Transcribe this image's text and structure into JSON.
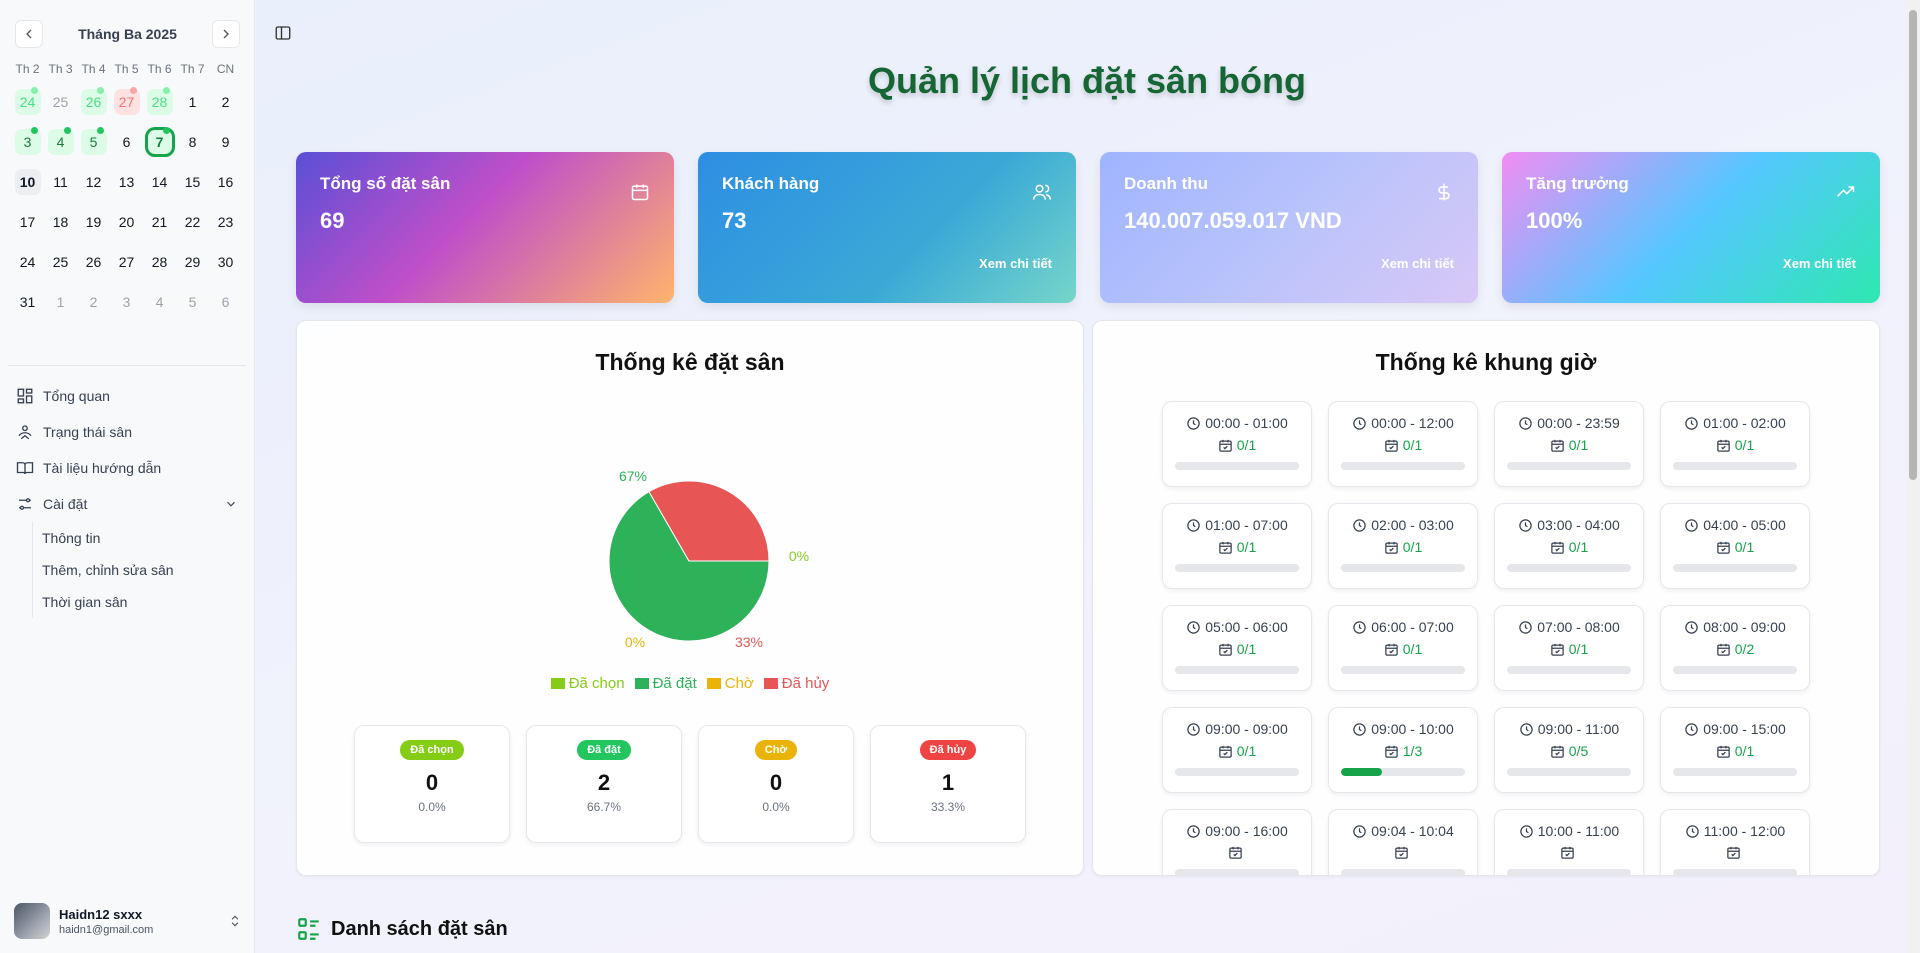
{
  "calendar": {
    "title": "Tháng Ba 2025",
    "weekdays": [
      "Th 2",
      "Th 3",
      "Th 4",
      "Th 5",
      "Th 6",
      "Th 7",
      "CN"
    ],
    "days": [
      {
        "d": "24",
        "state": "booked-outside",
        "dot": true
      },
      {
        "d": "25",
        "state": "outside",
        "dot": false
      },
      {
        "d": "26",
        "state": "booked-outside",
        "dot": true
      },
      {
        "d": "27",
        "state": "cancel",
        "dot": true
      },
      {
        "d": "28",
        "state": "booked-outside",
        "dot": true
      },
      {
        "d": "1",
        "state": "normal",
        "dot": false
      },
      {
        "d": "2",
        "state": "normal",
        "dot": false
      },
      {
        "d": "3",
        "state": "booked",
        "dot": true
      },
      {
        "d": "4",
        "state": "booked",
        "dot": true
      },
      {
        "d": "5",
        "state": "booked",
        "dot": true
      },
      {
        "d": "6",
        "state": "normal",
        "dot": false
      },
      {
        "d": "7",
        "state": "today",
        "dot": true
      },
      {
        "d": "8",
        "state": "normal",
        "dot": false
      },
      {
        "d": "9",
        "state": "normal",
        "dot": false
      },
      {
        "d": "10",
        "state": "current",
        "dot": false
      },
      {
        "d": "11",
        "state": "normal",
        "dot": false
      },
      {
        "d": "12",
        "state": "normal",
        "dot": false
      },
      {
        "d": "13",
        "state": "normal",
        "dot": false
      },
      {
        "d": "14",
        "state": "normal",
        "dot": false
      },
      {
        "d": "15",
        "state": "normal",
        "dot": false
      },
      {
        "d": "16",
        "state": "normal",
        "dot": false
      },
      {
        "d": "17",
        "state": "normal",
        "dot": false
      },
      {
        "d": "18",
        "state": "normal",
        "dot": false
      },
      {
        "d": "19",
        "state": "normal",
        "dot": false
      },
      {
        "d": "20",
        "state": "normal",
        "dot": false
      },
      {
        "d": "21",
        "state": "normal",
        "dot": false
      },
      {
        "d": "22",
        "state": "normal",
        "dot": false
      },
      {
        "d": "23",
        "state": "normal",
        "dot": false
      },
      {
        "d": "24",
        "state": "normal",
        "dot": false
      },
      {
        "d": "25",
        "state": "normal",
        "dot": false
      },
      {
        "d": "26",
        "state": "normal",
        "dot": false
      },
      {
        "d": "27",
        "state": "normal",
        "dot": false
      },
      {
        "d": "28",
        "state": "normal",
        "dot": false
      },
      {
        "d": "29",
        "state": "normal",
        "dot": false
      },
      {
        "d": "30",
        "state": "normal",
        "dot": false
      },
      {
        "d": "31",
        "state": "normal",
        "dot": false
      },
      {
        "d": "1",
        "state": "outside",
        "dot": false
      },
      {
        "d": "2",
        "state": "outside",
        "dot": false
      },
      {
        "d": "3",
        "state": "outside",
        "dot": false
      },
      {
        "d": "4",
        "state": "outside",
        "dot": false
      },
      {
        "d": "5",
        "state": "outside",
        "dot": false
      },
      {
        "d": "6",
        "state": "outside",
        "dot": false
      }
    ]
  },
  "menu": {
    "overview": "Tổng quan",
    "field_status": "Trạng thái sân",
    "docs": "Tài liệu hướng dẫn",
    "settings": "Cài đặt",
    "settings_sub": [
      "Thông tin",
      "Thêm, chỉnh sửa sân",
      "Thời gian sân"
    ]
  },
  "user": {
    "name": "Haidn12 sxxx",
    "email": "haidn1@gmail.com"
  },
  "page_title": "Quản lý lịch đặt sân bóng",
  "cards": {
    "bookings": {
      "label": "Tổng số đặt sân",
      "value": "69",
      "icon": "calendar-icon"
    },
    "customers": {
      "label": "Khách hàng",
      "value": "73",
      "more": "Xem chi tiết",
      "icon": "users-icon"
    },
    "revenue": {
      "label": "Doanh thu",
      "value": "140.007.059.017 VND",
      "more": "Xem chi tiết",
      "icon": "dollar-icon"
    },
    "growth": {
      "label": "Tăng trưởng",
      "value": "100%",
      "more": "Xem chi tiết",
      "icon": "trending-up-icon"
    }
  },
  "booking_stats": {
    "title": "Thống kê đặt sân",
    "statuses": [
      {
        "key": "chosen",
        "label": "Đã chọn",
        "count": "0",
        "pct": "0.0%",
        "color": "#84cc16"
      },
      {
        "key": "booked",
        "label": "Đã đặt",
        "count": "2",
        "pct": "66.7%",
        "color": "#22c55e"
      },
      {
        "key": "pending",
        "label": "Chờ",
        "count": "0",
        "pct": "0.0%",
        "color": "#eab308"
      },
      {
        "key": "cancelled",
        "label": "Đã hủy",
        "count": "1",
        "pct": "33.3%",
        "color": "#ef4444"
      }
    ]
  },
  "chart_data": {
    "type": "pie",
    "title": "Thống kê đặt sân",
    "categories": [
      "Đã chọn",
      "Đã đặt",
      "Chờ",
      "Đã hủy"
    ],
    "values": [
      0,
      2,
      0,
      1
    ],
    "labels": [
      "0%",
      "67%",
      "0%",
      "33%"
    ],
    "colors": [
      "#84cc16",
      "#2db159",
      "#eab308",
      "#e85555"
    ],
    "legend": "bottom"
  },
  "slot_stats": {
    "title": "Thống kê khung giờ",
    "slots": [
      {
        "time": "00:00 - 01:00",
        "count": "0/1",
        "fill": 0
      },
      {
        "time": "00:00 - 12:00",
        "count": "0/1",
        "fill": 0
      },
      {
        "time": "00:00 - 23:59",
        "count": "0/1",
        "fill": 0
      },
      {
        "time": "01:00 - 02:00",
        "count": "0/1",
        "fill": 0
      },
      {
        "time": "01:00 - 07:00",
        "count": "0/1",
        "fill": 0
      },
      {
        "time": "02:00 - 03:00",
        "count": "0/1",
        "fill": 0
      },
      {
        "time": "03:00 - 04:00",
        "count": "0/1",
        "fill": 0
      },
      {
        "time": "04:00 - 05:00",
        "count": "0/1",
        "fill": 0
      },
      {
        "time": "05:00 - 06:00",
        "count": "0/1",
        "fill": 0
      },
      {
        "time": "06:00 - 07:00",
        "count": "0/1",
        "fill": 0
      },
      {
        "time": "07:00 - 08:00",
        "count": "0/1",
        "fill": 0
      },
      {
        "time": "08:00 - 09:00",
        "count": "0/2",
        "fill": 0
      },
      {
        "time": "09:00 - 09:00",
        "count": "0/1",
        "fill": 0
      },
      {
        "time": "09:00 - 10:00",
        "count": "1/3",
        "fill": 0.333
      },
      {
        "time": "09:00 - 11:00",
        "count": "0/5",
        "fill": 0
      },
      {
        "time": "09:00 - 15:00",
        "count": "0/1",
        "fill": 0
      },
      {
        "time": "09:00 - 16:00",
        "count": "",
        "fill": 0
      },
      {
        "time": "09:04 - 10:04",
        "count": "",
        "fill": 0
      },
      {
        "time": "10:00 - 11:00",
        "count": "",
        "fill": 0
      },
      {
        "time": "11:00 - 12:00",
        "count": "",
        "fill": 0
      }
    ]
  },
  "list_title": "Danh sách đặt sân"
}
